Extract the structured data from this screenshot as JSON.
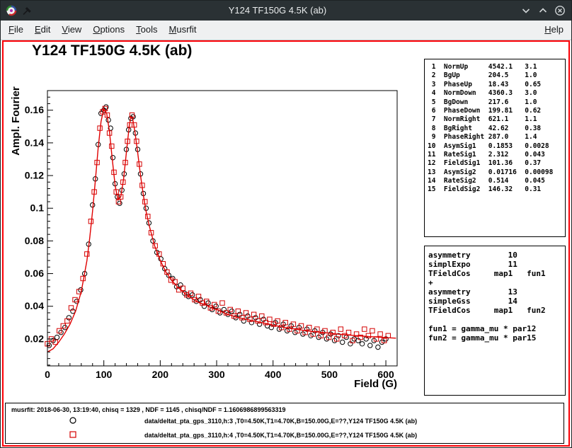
{
  "window": {
    "title": "Y124 TF150G 4.5K (ab)"
  },
  "menu": {
    "items": [
      {
        "label": "File",
        "underline": 0
      },
      {
        "label": "Edit",
        "underline": 0
      },
      {
        "label": "View",
        "underline": 0
      },
      {
        "label": "Options",
        "underline": 0
      },
      {
        "label": "Tools",
        "underline": 0
      },
      {
        "label": "Musrfit",
        "underline": 0
      }
    ],
    "right_items": [
      {
        "label": "Help",
        "underline": 0
      }
    ]
  },
  "plot": {
    "title": "Y124 TF150G 4.5K (ab)"
  },
  "chart_data": {
    "type": "line+scatter",
    "title": "Y124 TF150G 4.5K (ab)",
    "xlabel": "Field (G)",
    "ylabel": "Ampl. Fourier",
    "xlim": [
      0,
      620
    ],
    "ylim": [
      0.0035,
      0.172
    ],
    "xticks": [
      0,
      100,
      200,
      300,
      400,
      500,
      600
    ],
    "yticks": [
      0.02,
      0.04,
      0.06,
      0.08,
      0.1,
      0.12,
      0.14,
      0.16
    ],
    "ytick_labels": [
      "0.02",
      "0.04",
      "0.06",
      "0.08",
      "0.1",
      "0.12",
      "0.14",
      "0.16"
    ],
    "x_minor_step": 20,
    "y_minor_step": 0.004,
    "grid": false,
    "series": [
      {
        "name": "data h:3",
        "marker": "circle",
        "color": "#000000",
        "points": [
          [
            3,
            0.016
          ],
          [
            10,
            0.019
          ],
          [
            17,
            0.021
          ],
          [
            24,
            0.024
          ],
          [
            31,
            0.027
          ],
          [
            38,
            0.033
          ],
          [
            45,
            0.037
          ],
          [
            52,
            0.043
          ],
          [
            59,
            0.05
          ],
          [
            66,
            0.06
          ],
          [
            73,
            0.078
          ],
          [
            80,
            0.102
          ],
          [
            85,
            0.118
          ],
          [
            90,
            0.139
          ],
          [
            95,
            0.158
          ],
          [
            100,
            0.16
          ],
          [
            104,
            0.162
          ],
          [
            108,
            0.154
          ],
          [
            112,
            0.149
          ],
          [
            116,
            0.131
          ],
          [
            120,
            0.115
          ],
          [
            124,
            0.107
          ],
          [
            128,
            0.103
          ],
          [
            132,
            0.111
          ],
          [
            136,
            0.121
          ],
          [
            140,
            0.136
          ],
          [
            144,
            0.148
          ],
          [
            148,
            0.155
          ],
          [
            152,
            0.156
          ],
          [
            156,
            0.146
          ],
          [
            160,
            0.136
          ],
          [
            165,
            0.121
          ],
          [
            170,
            0.109
          ],
          [
            175,
            0.1
          ],
          [
            180,
            0.091
          ],
          [
            187,
            0.08
          ],
          [
            194,
            0.073
          ],
          [
            201,
            0.069
          ],
          [
            208,
            0.063
          ],
          [
            215,
            0.059
          ],
          [
            222,
            0.057
          ],
          [
            229,
            0.052
          ],
          [
            236,
            0.053
          ],
          [
            243,
            0.048
          ],
          [
            250,
            0.046
          ],
          [
            257,
            0.047
          ],
          [
            264,
            0.043
          ],
          [
            271,
            0.044
          ],
          [
            278,
            0.04
          ],
          [
            285,
            0.042
          ],
          [
            292,
            0.038
          ],
          [
            299,
            0.04
          ],
          [
            306,
            0.036
          ],
          [
            313,
            0.038
          ],
          [
            320,
            0.035
          ],
          [
            327,
            0.037
          ],
          [
            334,
            0.033
          ],
          [
            341,
            0.035
          ],
          [
            348,
            0.031
          ],
          [
            355,
            0.034
          ],
          [
            362,
            0.03
          ],
          [
            369,
            0.033
          ],
          [
            376,
            0.029
          ],
          [
            383,
            0.032
          ],
          [
            390,
            0.028
          ],
          [
            397,
            0.027
          ],
          [
            404,
            0.03
          ],
          [
            411,
            0.026
          ],
          [
            418,
            0.029
          ],
          [
            425,
            0.025
          ],
          [
            432,
            0.028
          ],
          [
            439,
            0.024
          ],
          [
            446,
            0.027
          ],
          [
            453,
            0.023
          ],
          [
            460,
            0.026
          ],
          [
            467,
            0.022
          ],
          [
            474,
            0.025
          ],
          [
            481,
            0.021
          ],
          [
            488,
            0.024
          ],
          [
            495,
            0.02
          ],
          [
            502,
            0.023
          ],
          [
            509,
            0.019
          ],
          [
            516,
            0.022
          ],
          [
            523,
            0.018
          ],
          [
            530,
            0.021
          ],
          [
            537,
            0.017
          ],
          [
            544,
            0.02
          ],
          [
            551,
            0.019
          ],
          [
            558,
            0.017
          ],
          [
            565,
            0.02
          ],
          [
            572,
            0.016
          ],
          [
            579,
            0.019
          ],
          [
            586,
            0.015
          ],
          [
            593,
            0.018
          ],
          [
            600,
            0.02
          ]
        ]
      },
      {
        "name": "data h:4",
        "marker": "square",
        "color": "#d40000",
        "points": [
          [
            0,
            0.017
          ],
          [
            7,
            0.02
          ],
          [
            14,
            0.018
          ],
          [
            21,
            0.025
          ],
          [
            28,
            0.028
          ],
          [
            35,
            0.031
          ],
          [
            42,
            0.039
          ],
          [
            49,
            0.044
          ],
          [
            56,
            0.049
          ],
          [
            63,
            0.057
          ],
          [
            70,
            0.072
          ],
          [
            77,
            0.092
          ],
          [
            83,
            0.11
          ],
          [
            88,
            0.128
          ],
          [
            93,
            0.149
          ],
          [
            98,
            0.159
          ],
          [
            102,
            0.161
          ],
          [
            106,
            0.157
          ],
          [
            110,
            0.146
          ],
          [
            114,
            0.138
          ],
          [
            118,
            0.122
          ],
          [
            122,
            0.11
          ],
          [
            126,
            0.104
          ],
          [
            130,
            0.107
          ],
          [
            134,
            0.116
          ],
          [
            138,
            0.128
          ],
          [
            142,
            0.141
          ],
          [
            146,
            0.151
          ],
          [
            150,
            0.157
          ],
          [
            154,
            0.151
          ],
          [
            158,
            0.141
          ],
          [
            163,
            0.127
          ],
          [
            168,
            0.114
          ],
          [
            173,
            0.104
          ],
          [
            178,
            0.095
          ],
          [
            184,
            0.085
          ],
          [
            191,
            0.077
          ],
          [
            198,
            0.072
          ],
          [
            205,
            0.066
          ],
          [
            212,
            0.061
          ],
          [
            219,
            0.056
          ],
          [
            226,
            0.055
          ],
          [
            233,
            0.05
          ],
          [
            240,
            0.051
          ],
          [
            247,
            0.047
          ],
          [
            254,
            0.048
          ],
          [
            261,
            0.044
          ],
          [
            268,
            0.046
          ],
          [
            275,
            0.042
          ],
          [
            282,
            0.043
          ],
          [
            289,
            0.039
          ],
          [
            296,
            0.041
          ],
          [
            303,
            0.037
          ],
          [
            310,
            0.042
          ],
          [
            317,
            0.036
          ],
          [
            324,
            0.038
          ],
          [
            331,
            0.034
          ],
          [
            338,
            0.037
          ],
          [
            345,
            0.033
          ],
          [
            352,
            0.036
          ],
          [
            359,
            0.032
          ],
          [
            366,
            0.035
          ],
          [
            373,
            0.031
          ],
          [
            380,
            0.034
          ],
          [
            387,
            0.03
          ],
          [
            394,
            0.032
          ],
          [
            401,
            0.029
          ],
          [
            408,
            0.031
          ],
          [
            415,
            0.027
          ],
          [
            422,
            0.03
          ],
          [
            429,
            0.026
          ],
          [
            436,
            0.029
          ],
          [
            443,
            0.025
          ],
          [
            450,
            0.028
          ],
          [
            457,
            0.024
          ],
          [
            464,
            0.027
          ],
          [
            471,
            0.023
          ],
          [
            478,
            0.026
          ],
          [
            485,
            0.022
          ],
          [
            492,
            0.025
          ],
          [
            499,
            0.021
          ],
          [
            506,
            0.024
          ],
          [
            513,
            0.02
          ],
          [
            520,
            0.026
          ],
          [
            527,
            0.022
          ],
          [
            534,
            0.024
          ],
          [
            541,
            0.019
          ],
          [
            548,
            0.023
          ],
          [
            555,
            0.021
          ],
          [
            562,
            0.026
          ],
          [
            569,
            0.022
          ],
          [
            576,
            0.025
          ],
          [
            583,
            0.02
          ],
          [
            590,
            0.023
          ],
          [
            597,
            0.019
          ],
          [
            604,
            0.022
          ]
        ]
      },
      {
        "name": "fit",
        "type": "line",
        "marker": "none",
        "color": "#e00000",
        "points": [
          [
            0,
            0.012
          ],
          [
            10,
            0.014
          ],
          [
            20,
            0.018
          ],
          [
            30,
            0.023
          ],
          [
            40,
            0.029
          ],
          [
            50,
            0.037
          ],
          [
            60,
            0.049
          ],
          [
            70,
            0.068
          ],
          [
            75,
            0.082
          ],
          [
            80,
            0.098
          ],
          [
            85,
            0.117
          ],
          [
            90,
            0.137
          ],
          [
            95,
            0.153
          ],
          [
            100,
            0.161
          ],
          [
            105,
            0.158
          ],
          [
            110,
            0.147
          ],
          [
            115,
            0.13
          ],
          [
            120,
            0.114
          ],
          [
            125,
            0.105
          ],
          [
            130,
            0.107
          ],
          [
            135,
            0.118
          ],
          [
            140,
            0.134
          ],
          [
            145,
            0.15
          ],
          [
            148,
            0.156
          ],
          [
            151,
            0.155
          ],
          [
            155,
            0.147
          ],
          [
            160,
            0.134
          ],
          [
            165,
            0.12
          ],
          [
            170,
            0.108
          ],
          [
            175,
            0.098
          ],
          [
            180,
            0.09
          ],
          [
            190,
            0.077
          ],
          [
            200,
            0.068
          ],
          [
            210,
            0.061
          ],
          [
            220,
            0.056
          ],
          [
            230,
            0.052
          ],
          [
            240,
            0.049
          ],
          [
            250,
            0.046
          ],
          [
            260,
            0.044
          ],
          [
            270,
            0.042
          ],
          [
            280,
            0.041
          ],
          [
            290,
            0.039
          ],
          [
            300,
            0.038
          ],
          [
            320,
            0.035
          ],
          [
            340,
            0.033
          ],
          [
            360,
            0.0315
          ],
          [
            380,
            0.03
          ],
          [
            400,
            0.0285
          ],
          [
            420,
            0.027
          ],
          [
            440,
            0.026
          ],
          [
            460,
            0.025
          ],
          [
            480,
            0.0242
          ],
          [
            500,
            0.0235
          ],
          [
            520,
            0.0228
          ],
          [
            540,
            0.0222
          ],
          [
            560,
            0.0217
          ],
          [
            580,
            0.0212
          ],
          [
            600,
            0.0208
          ],
          [
            618,
            0.0205
          ]
        ]
      }
    ]
  },
  "params_box": {
    "rows": [
      {
        "num": "1",
        "name": "NormUp",
        "value": "4542.1",
        "error": "3.1"
      },
      {
        "num": "2",
        "name": "BgUp",
        "value": "204.5",
        "error": "1.0"
      },
      {
        "num": "3",
        "name": "PhaseUp",
        "value": "18.43",
        "error": "0.65"
      },
      {
        "num": "4",
        "name": "NormDown",
        "value": "4360.3",
        "error": "3.0"
      },
      {
        "num": "5",
        "name": "BgDown",
        "value": "217.6",
        "error": "1.0"
      },
      {
        "num": "6",
        "name": "PhaseDown",
        "value": "199.81",
        "error": "0.62"
      },
      {
        "num": "7",
        "name": "NormRight",
        "value": "621.1",
        "error": "1.1"
      },
      {
        "num": "8",
        "name": "BgRight",
        "value": "42.62",
        "error": "0.38"
      },
      {
        "num": "9",
        "name": "PhaseRight",
        "value": "287.0",
        "error": "1.4"
      },
      {
        "num": "10",
        "name": "AsymSig1",
        "value": "0.1853",
        "error": "0.0028"
      },
      {
        "num": "11",
        "name": "RateSig1",
        "value": "2.312",
        "error": "0.043"
      },
      {
        "num": "12",
        "name": "FieldSig1",
        "value": "101.36",
        "error": "0.37"
      },
      {
        "num": "13",
        "name": "AsymSig2",
        "value": "0.01716",
        "error": "0.00098"
      },
      {
        "num": "14",
        "name": "RateSig2",
        "value": "0.514",
        "error": "0.045"
      },
      {
        "num": "15",
        "name": "FieldSig2",
        "value": "146.32",
        "error": "0.31"
      }
    ]
  },
  "theory_box": {
    "lines": [
      "asymmetry        10",
      "simplExpo        11",
      "TFieldCos     map1   fun1",
      "+",
      "asymmetry        13",
      "simpleGss        14",
      "TFieldCos     map1   fun2",
      "",
      "fun1 = gamma_mu * par12",
      "fun2 = gamma_mu * par15"
    ]
  },
  "footer": {
    "stat_line": "musrfit: 2018-06-30, 13:19:40, chisq = 1329 , NDF = 1145 , chisq/NDF = 1.1606986899563319",
    "legend": [
      {
        "marker": "circle",
        "color": "#000000",
        "label": "data/deltat_pta_gps_3110,h:3 ,T0=4.50K,T1=4.70K,B=150.00G,E=??,Y124 TF150G 4.5K (ab)"
      },
      {
        "marker": "square",
        "color": "#d40000",
        "label": "data/deltat_pta_gps_3110,h:4 ,T0=4.50K,T1=4.70K,B=150.00G,E=??,Y124 TF150G 4.5K (ab)"
      }
    ]
  }
}
